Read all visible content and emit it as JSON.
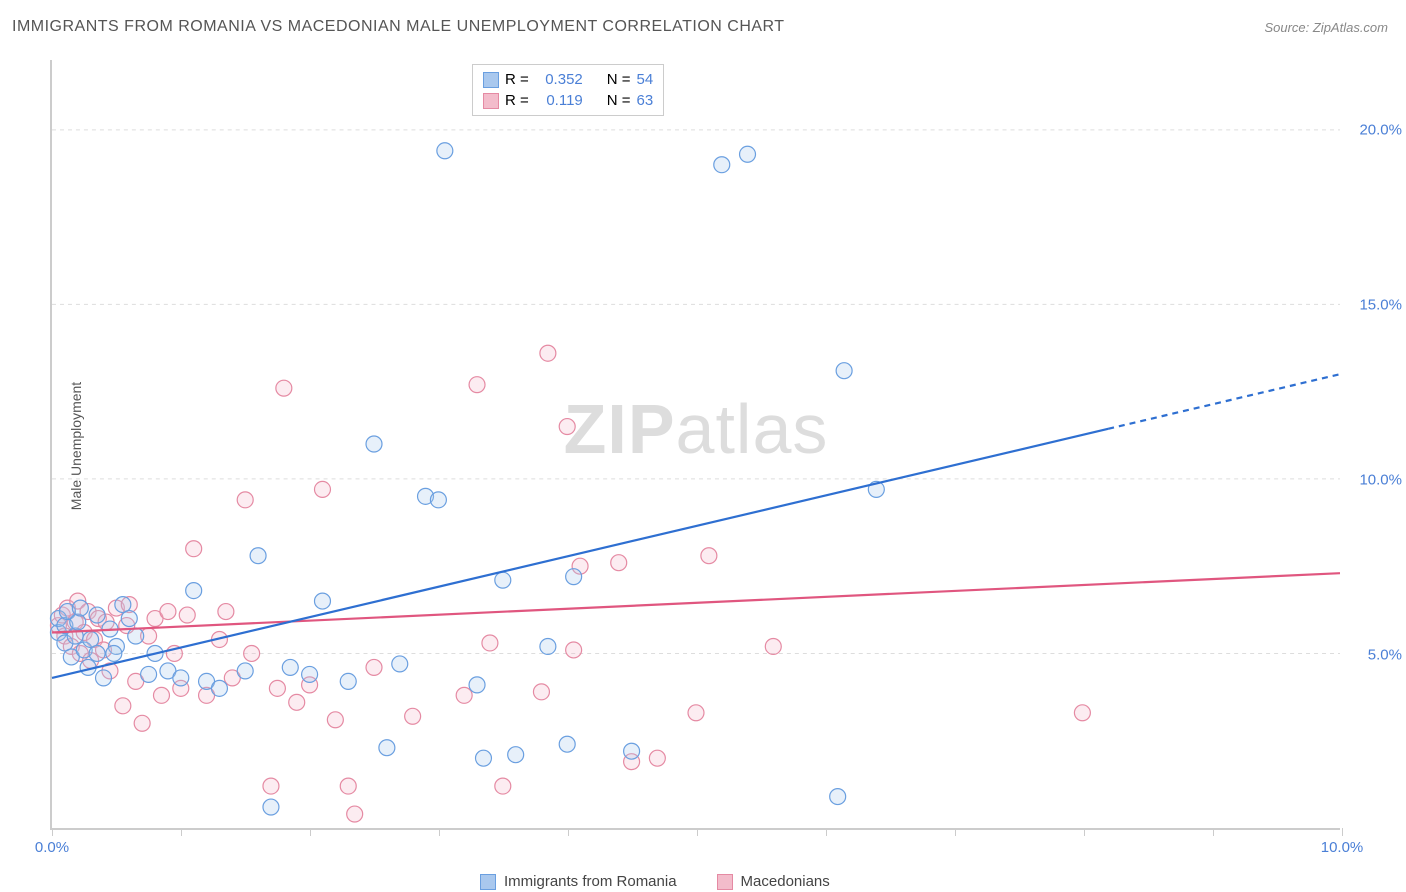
{
  "title": "IMMIGRANTS FROM ROMANIA VS MACEDONIAN MALE UNEMPLOYMENT CORRELATION CHART",
  "source_label": "Source: ",
  "source_name": "ZipAtlas.com",
  "y_axis_label": "Male Unemployment",
  "watermark_bold": "ZIP",
  "watermark_rest": "atlas",
  "chart": {
    "type": "scatter",
    "xlim": [
      0,
      10
    ],
    "ylim": [
      0,
      22
    ],
    "x_ticks": [
      0,
      1,
      2,
      3,
      4,
      5,
      6,
      7,
      8,
      9,
      10
    ],
    "x_tick_labels": {
      "0": "0.0%",
      "10": "10.0%"
    },
    "y_gridlines": [
      5,
      10,
      15,
      20
    ],
    "y_tick_labels": {
      "5": "5.0%",
      "10": "10.0%",
      "15": "15.0%",
      "20": "20.0%"
    },
    "x_tick_color": "#4a7fd6",
    "y_tick_color": "#4a7fd6",
    "background_color": "#ffffff",
    "grid_color": "#dddddd",
    "axis_color": "#cccccc",
    "marker_radius": 8,
    "marker_stroke_width": 1.2,
    "marker_fill_opacity": 0.28,
    "series": {
      "romania": {
        "label": "Immigrants from Romania",
        "color_stroke": "#6a9fe0",
        "color_fill": "#a9c8ee",
        "R": "0.352",
        "N": "54",
        "trend": {
          "x1": 0,
          "y1": 4.3,
          "x2": 10,
          "y2": 13.0,
          "solid_until_x": 8.2,
          "color": "#2e6fd1",
          "width": 2.2
        },
        "points": [
          [
            0.05,
            5.6
          ],
          [
            0.05,
            6.0
          ],
          [
            0.1,
            5.3
          ],
          [
            0.1,
            5.8
          ],
          [
            0.12,
            6.2
          ],
          [
            0.15,
            4.9
          ],
          [
            0.18,
            5.5
          ],
          [
            0.2,
            5.9
          ],
          [
            0.22,
            6.3
          ],
          [
            0.25,
            5.1
          ],
          [
            0.28,
            4.6
          ],
          [
            0.3,
            5.4
          ],
          [
            0.35,
            5.0
          ],
          [
            0.4,
            4.3
          ],
          [
            0.45,
            5.7
          ],
          [
            0.5,
            5.2
          ],
          [
            0.55,
            6.4
          ],
          [
            0.6,
            6.0
          ],
          [
            0.65,
            5.5
          ],
          [
            0.75,
            4.4
          ],
          [
            0.8,
            5.0
          ],
          [
            0.9,
            4.5
          ],
          [
            1.0,
            4.3
          ],
          [
            1.1,
            6.8
          ],
          [
            1.2,
            4.2
          ],
          [
            1.3,
            4.0
          ],
          [
            1.5,
            4.5
          ],
          [
            1.6,
            7.8
          ],
          [
            1.7,
            0.6
          ],
          [
            1.85,
            4.6
          ],
          [
            2.0,
            4.4
          ],
          [
            2.1,
            6.5
          ],
          [
            2.3,
            4.2
          ],
          [
            2.5,
            11.0
          ],
          [
            2.6,
            2.3
          ],
          [
            2.7,
            4.7
          ],
          [
            2.9,
            9.5
          ],
          [
            3.0,
            9.4
          ],
          [
            3.05,
            19.4
          ],
          [
            3.3,
            4.1
          ],
          [
            3.35,
            2.0
          ],
          [
            3.5,
            7.1
          ],
          [
            3.6,
            2.1
          ],
          [
            3.85,
            5.2
          ],
          [
            4.0,
            2.4
          ],
          [
            4.05,
            7.2
          ],
          [
            4.5,
            2.2
          ],
          [
            5.2,
            19.0
          ],
          [
            5.4,
            19.3
          ],
          [
            6.1,
            0.9
          ],
          [
            6.4,
            9.7
          ],
          [
            6.15,
            13.1
          ],
          [
            0.35,
            6.1
          ],
          [
            0.48,
            5.0
          ]
        ]
      },
      "macedonians": {
        "label": "Macedonians",
        "color_stroke": "#e58aa3",
        "color_fill": "#f3bccb",
        "R": "0.119",
        "N": "63",
        "trend": {
          "x1": 0,
          "y1": 5.6,
          "x2": 10,
          "y2": 7.3,
          "solid_until_x": 10,
          "color": "#e0567f",
          "width": 2.2
        },
        "points": [
          [
            0.05,
            5.8
          ],
          [
            0.08,
            6.1
          ],
          [
            0.1,
            5.5
          ],
          [
            0.12,
            6.3
          ],
          [
            0.15,
            5.2
          ],
          [
            0.18,
            5.9
          ],
          [
            0.2,
            6.5
          ],
          [
            0.22,
            5.0
          ],
          [
            0.25,
            5.6
          ],
          [
            0.28,
            6.2
          ],
          [
            0.3,
            4.8
          ],
          [
            0.33,
            5.4
          ],
          [
            0.36,
            6.0
          ],
          [
            0.4,
            5.1
          ],
          [
            0.45,
            4.5
          ],
          [
            0.5,
            6.3
          ],
          [
            0.55,
            3.5
          ],
          [
            0.58,
            5.8
          ],
          [
            0.6,
            6.4
          ],
          [
            0.65,
            4.2
          ],
          [
            0.7,
            3.0
          ],
          [
            0.75,
            5.5
          ],
          [
            0.8,
            6.0
          ],
          [
            0.85,
            3.8
          ],
          [
            0.9,
            6.2
          ],
          [
            0.95,
            5.0
          ],
          [
            1.0,
            4.0
          ],
          [
            1.1,
            8.0
          ],
          [
            1.2,
            3.8
          ],
          [
            1.3,
            5.4
          ],
          [
            1.35,
            6.2
          ],
          [
            1.4,
            4.3
          ],
          [
            1.5,
            9.4
          ],
          [
            1.55,
            5.0
          ],
          [
            1.7,
            1.2
          ],
          [
            1.75,
            4.0
          ],
          [
            1.8,
            12.6
          ],
          [
            1.9,
            3.6
          ],
          [
            2.0,
            4.1
          ],
          [
            2.1,
            9.7
          ],
          [
            2.2,
            3.1
          ],
          [
            2.3,
            1.2
          ],
          [
            2.35,
            0.4
          ],
          [
            2.5,
            4.6
          ],
          [
            2.8,
            3.2
          ],
          [
            3.2,
            3.8
          ],
          [
            3.3,
            12.7
          ],
          [
            3.4,
            5.3
          ],
          [
            3.5,
            1.2
          ],
          [
            3.8,
            3.9
          ],
          [
            3.85,
            13.6
          ],
          [
            4.0,
            11.5
          ],
          [
            4.05,
            5.1
          ],
          [
            4.1,
            7.5
          ],
          [
            4.4,
            7.6
          ],
          [
            4.5,
            1.9
          ],
          [
            4.7,
            2.0
          ],
          [
            5.0,
            3.3
          ],
          [
            5.1,
            7.8
          ],
          [
            5.6,
            5.2
          ],
          [
            1.05,
            6.1
          ],
          [
            0.42,
            5.9
          ],
          [
            8.0,
            3.3
          ]
        ]
      }
    }
  },
  "legend": {
    "R_prefix": "R = ",
    "N_prefix": "N = ",
    "stat_color": "#4a7fd6",
    "text_color": "#444444"
  }
}
